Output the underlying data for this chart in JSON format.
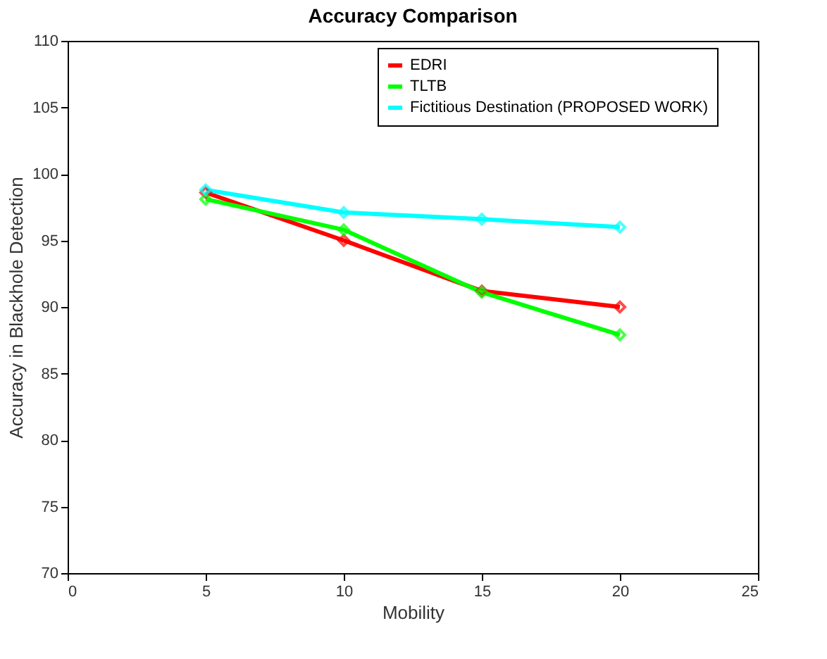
{
  "chart_data": {
    "type": "line",
    "title": "Accuracy Comparison",
    "xlabel": "Mobility",
    "ylabel": "Accuracy in Blackhole Detection",
    "x": [
      5,
      10,
      15,
      20
    ],
    "series": [
      {
        "name": "EDRI",
        "color": "#ff0000",
        "values": [
          98.6,
          95.0,
          91.2,
          90.0
        ]
      },
      {
        "name": "TLTB",
        "color": "#00ff00",
        "values": [
          98.1,
          95.8,
          91.1,
          87.9
        ]
      },
      {
        "name": "Fictitious Destination (PROPOSED WORK)",
        "color": "#00ffff",
        "values": [
          98.8,
          97.1,
          96.6,
          96.0
        ]
      }
    ],
    "xlim": [
      0,
      25
    ],
    "xticks": [
      0,
      5,
      10,
      15,
      20,
      25
    ],
    "ylim": [
      70,
      110
    ],
    "yticks": [
      70,
      75,
      80,
      85,
      90,
      95,
      100,
      105,
      110
    ],
    "grid": false,
    "legend": "top right",
    "marker": "diamond",
    "line_style": "solid"
  }
}
